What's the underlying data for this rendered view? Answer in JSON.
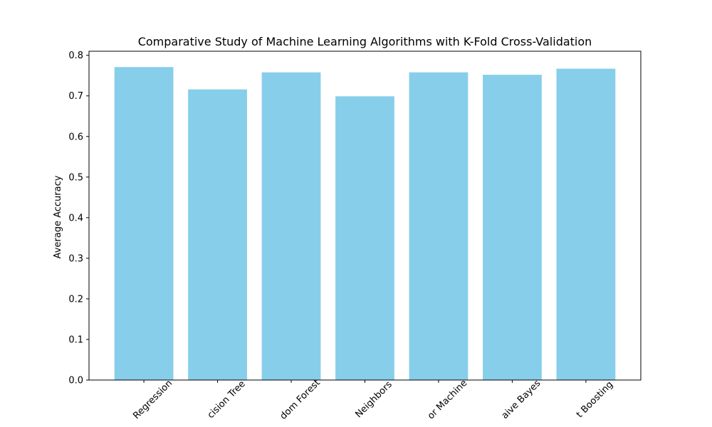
{
  "chart_data": {
    "type": "bar",
    "title": "Comparative Study of Machine Learning Algorithms with K-Fold Cross-Validation",
    "xlabel": "",
    "ylabel": "Average Accuracy",
    "categories": [
      "Logistic Regression",
      "Decision Tree",
      "Random Forest",
      "K-Nearest Neighbors",
      "Support Vector Machine",
      "Naive Bayes",
      "Gradient Boosting"
    ],
    "visible_category_text": [
      "Regression",
      "cision Tree",
      "dom Forest",
      "Neighbors",
      "or Machine",
      "aive Bayes",
      "t Boosting"
    ],
    "values": [
      0.771,
      0.716,
      0.758,
      0.699,
      0.758,
      0.752,
      0.767
    ],
    "ylim": [
      0,
      0.81
    ],
    "yticks": [
      "0.0",
      "0.1",
      "0.2",
      "0.3",
      "0.4",
      "0.5",
      "0.6",
      "0.7",
      "0.8"
    ],
    "bar_color": "#87ceeb",
    "grid": false,
    "legend": "none"
  }
}
